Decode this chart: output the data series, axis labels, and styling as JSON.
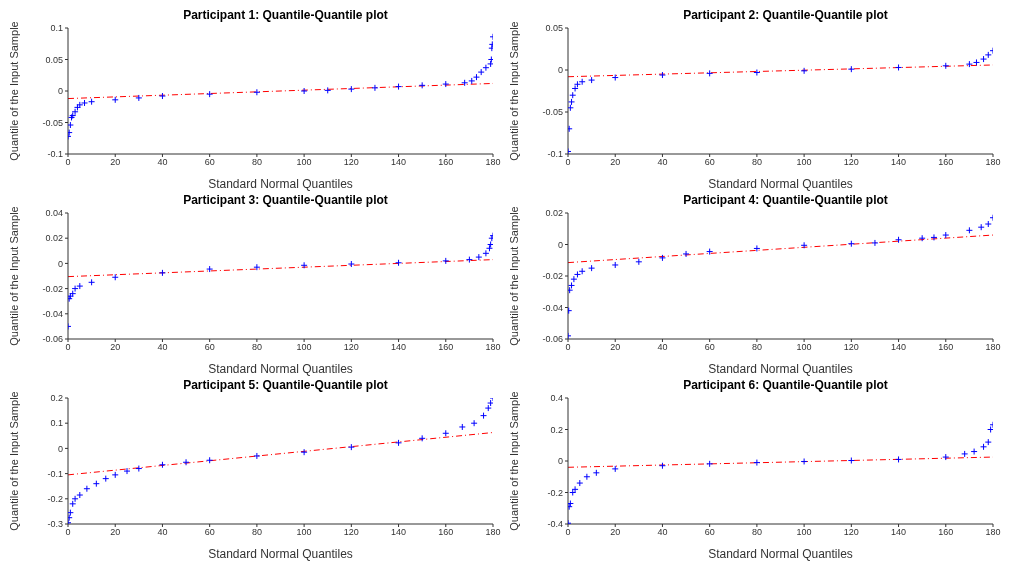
{
  "chart_data": [
    {
      "type": "scatter",
      "title": "Participant 1: Quantile-Quantile plot",
      "xlabel": "Standard Normal Quantiles",
      "ylabel": "Quantile of the Input Sample",
      "xlim": [
        0,
        180
      ],
      "xticks": [
        0,
        20,
        40,
        60,
        80,
        100,
        120,
        140,
        160,
        180
      ],
      "ylim": [
        -0.1,
        0.1
      ],
      "yticks": [
        -0.1,
        -0.05,
        0,
        0.05,
        0.1
      ],
      "grid": false,
      "legend": false,
      "series": [
        {
          "type": "scatter",
          "marker": "cross",
          "color": "#0000ff",
          "x": [
            0,
            0.5,
            1,
            1.5,
            2,
            3,
            4,
            5,
            7,
            10,
            20,
            30,
            40,
            60,
            80,
            100,
            110,
            120,
            130,
            140,
            150,
            160,
            168,
            171,
            173,
            175,
            177,
            179,
            179.3,
            179.5,
            179.7,
            180
          ],
          "values": [
            -0.072,
            -0.066,
            -0.054,
            -0.042,
            -0.039,
            -0.033,
            -0.026,
            -0.022,
            -0.019,
            -0.017,
            -0.014,
            -0.011,
            -0.008,
            -0.005,
            -0.002,
            0,
            0.001,
            0.003,
            0.005,
            0.007,
            0.009,
            0.011,
            0.013,
            0.016,
            0.022,
            0.03,
            0.037,
            0.043,
            0.05,
            0.068,
            0.074,
            0.086
          ]
        },
        {
          "type": "line",
          "color": "#ff0000",
          "line_style": "dashed",
          "x": [
            0,
            180
          ],
          "values": [
            -0.012,
            0.012
          ]
        }
      ]
    },
    {
      "type": "scatter",
      "title": "Participant 2: Quantile-Quantile plot",
      "xlabel": "Standard Normal Quantiles",
      "ylabel": "Quantile of the Input Sample",
      "xlim": [
        0,
        180
      ],
      "xticks": [
        0,
        20,
        40,
        60,
        80,
        100,
        120,
        140,
        160,
        180
      ],
      "ylim": [
        -0.1,
        0.05
      ],
      "yticks": [
        -0.1,
        -0.05,
        0,
        0.05
      ],
      "grid": false,
      "legend": false,
      "series": [
        {
          "type": "scatter",
          "marker": "cross",
          "color": "#0000ff",
          "x": [
            0,
            0.5,
            1,
            1.5,
            2,
            3,
            4,
            6,
            10,
            20,
            40,
            60,
            80,
            100,
            120,
            140,
            160,
            170,
            173,
            176,
            178,
            180
          ],
          "values": [
            -0.097,
            -0.07,
            -0.045,
            -0.038,
            -0.03,
            -0.022,
            -0.017,
            -0.014,
            -0.012,
            -0.009,
            -0.006,
            -0.004,
            -0.003,
            -0.001,
            0.001,
            0.003,
            0.005,
            0.007,
            0.009,
            0.013,
            0.018,
            0.023
          ]
        },
        {
          "type": "line",
          "color": "#ff0000",
          "line_style": "dashed",
          "x": [
            0,
            180
          ],
          "values": [
            -0.008,
            0.006
          ]
        }
      ]
    },
    {
      "type": "scatter",
      "title": "Participant 3: Quantile-Quantile plot",
      "xlabel": "Standard Normal Quantiles",
      "ylabel": "Quantile of the Input Sample",
      "xlim": [
        0,
        180
      ],
      "xticks": [
        0,
        20,
        40,
        60,
        80,
        100,
        120,
        140,
        160,
        180
      ],
      "ylim": [
        -0.06,
        0.04
      ],
      "yticks": [
        -0.06,
        -0.04,
        -0.02,
        0,
        0.02,
        0.04
      ],
      "grid": false,
      "legend": false,
      "series": [
        {
          "type": "scatter",
          "marker": "cross",
          "color": "#0000ff",
          "x": [
            0,
            0.5,
            1,
            2,
            3,
            5,
            10,
            20,
            40,
            60,
            80,
            100,
            120,
            140,
            160,
            170,
            174,
            177,
            178.5,
            179,
            179.5,
            180
          ],
          "values": [
            -0.05,
            -0.028,
            -0.026,
            -0.024,
            -0.02,
            -0.018,
            -0.015,
            -0.011,
            -0.0075,
            -0.0045,
            -0.003,
            -0.0015,
            -0.0005,
            0.0005,
            0.002,
            0.003,
            0.005,
            0.008,
            0.012,
            0.015,
            0.02,
            0.022
          ]
        },
        {
          "type": "line",
          "color": "#ff0000",
          "line_style": "dashed",
          "x": [
            0,
            180
          ],
          "values": [
            -0.0105,
            0.003
          ]
        }
      ]
    },
    {
      "type": "scatter",
      "title": "Participant 4: Quantile-Quantile plot",
      "xlabel": "Standard Normal Quantiles",
      "ylabel": "Quantile of the Input Sample",
      "xlim": [
        0,
        180
      ],
      "xticks": [
        0,
        20,
        40,
        60,
        80,
        100,
        120,
        140,
        160,
        180
      ],
      "ylim": [
        -0.06,
        0.02
      ],
      "yticks": [
        -0.06,
        -0.04,
        -0.02,
        0,
        0.02
      ],
      "grid": false,
      "legend": false,
      "series": [
        {
          "type": "scatter",
          "marker": "cross",
          "color": "#0000ff",
          "x": [
            0,
            0.3,
            0.7,
            1.5,
            2.5,
            4,
            6,
            10,
            20,
            30,
            40,
            50,
            60,
            80,
            100,
            120,
            130,
            140,
            150,
            155,
            160,
            170,
            175,
            178,
            180
          ],
          "values": [
            -0.058,
            -0.042,
            -0.029,
            -0.026,
            -0.022,
            -0.019,
            -0.017,
            -0.015,
            -0.013,
            -0.011,
            -0.0085,
            -0.006,
            -0.0045,
            -0.0025,
            -0.0005,
            0.0005,
            0.001,
            0.003,
            0.004,
            0.0045,
            0.006,
            0.009,
            0.011,
            0.013,
            0.017
          ]
        },
        {
          "type": "line",
          "color": "#ff0000",
          "line_style": "dashed",
          "x": [
            0,
            180
          ],
          "values": [
            -0.0115,
            0.006
          ]
        }
      ]
    },
    {
      "type": "scatter",
      "title": "Participant 5: Quantile-Quantile plot",
      "xlabel": "Standard Normal Quantiles",
      "ylabel": "Quantile of the Input Sample",
      "xlim": [
        0,
        180
      ],
      "xticks": [
        0,
        20,
        40,
        60,
        80,
        100,
        120,
        140,
        160,
        180
      ],
      "ylim": [
        -0.3,
        0.2
      ],
      "yticks": [
        -0.3,
        -0.2,
        -0.1,
        0,
        0.1,
        0.2
      ],
      "grid": false,
      "legend": false,
      "series": [
        {
          "type": "scatter",
          "marker": "cross",
          "color": "#0000ff",
          "x": [
            0,
            0.5,
            1,
            2,
            3,
            5,
            8,
            12,
            16,
            20,
            25,
            30,
            40,
            50,
            60,
            80,
            100,
            120,
            140,
            150,
            160,
            167,
            172,
            176,
            178,
            179,
            180
          ],
          "values": [
            -0.295,
            -0.275,
            -0.255,
            -0.22,
            -0.2,
            -0.185,
            -0.16,
            -0.14,
            -0.12,
            -0.105,
            -0.09,
            -0.08,
            -0.065,
            -0.055,
            -0.047,
            -0.03,
            -0.015,
            0.005,
            0.022,
            0.04,
            0.06,
            0.085,
            0.1,
            0.13,
            0.16,
            0.18,
            0.2
          ]
        },
        {
          "type": "line",
          "color": "#ff0000",
          "line_style": "dashed",
          "x": [
            0,
            180
          ],
          "values": [
            -0.105,
            0.063
          ]
        }
      ]
    },
    {
      "type": "scatter",
      "title": "Participant 6: Quantile-Quantile plot",
      "xlabel": "Standard Normal Quantiles",
      "ylabel": "Quantile of the Input Sample",
      "xlim": [
        0,
        180
      ],
      "xticks": [
        0,
        20,
        40,
        60,
        80,
        100,
        120,
        140,
        160,
        180
      ],
      "ylim": [
        -0.4,
        0.4
      ],
      "yticks": [
        -0.4,
        -0.2,
        0,
        0.2,
        0.4
      ],
      "grid": false,
      "legend": false,
      "series": [
        {
          "type": "scatter",
          "marker": "cross",
          "color": "#0000ff",
          "x": [
            0,
            0.5,
            1,
            2,
            3,
            5,
            8,
            12,
            20,
            40,
            60,
            80,
            100,
            120,
            140,
            160,
            168,
            172,
            176,
            178,
            179,
            180
          ],
          "values": [
            -0.395,
            -0.29,
            -0.27,
            -0.2,
            -0.18,
            -0.14,
            -0.1,
            -0.075,
            -0.05,
            -0.03,
            -0.018,
            -0.01,
            -0.003,
            0.003,
            0.01,
            0.025,
            0.045,
            0.06,
            0.09,
            0.12,
            0.2,
            0.23
          ]
        },
        {
          "type": "line",
          "color": "#ff0000",
          "line_style": "dashed",
          "x": [
            0,
            180
          ],
          "values": [
            -0.04,
            0.025
          ]
        }
      ]
    }
  ]
}
